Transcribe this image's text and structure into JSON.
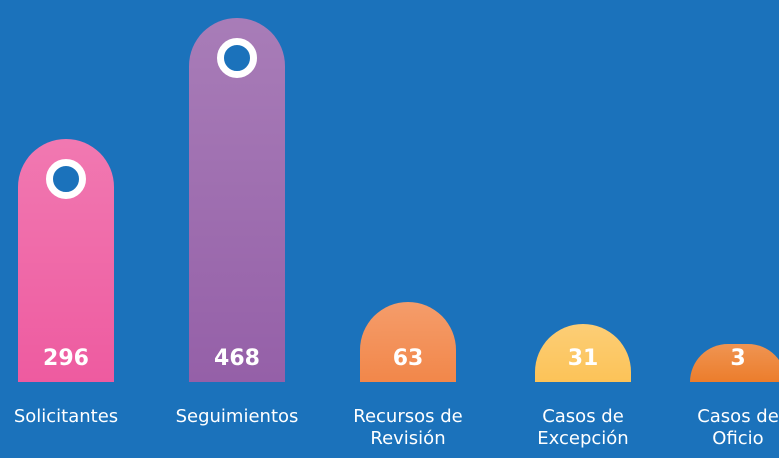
{
  "chart_data": {
    "type": "bar",
    "categories": [
      "Solicitantes",
      "Seguimientos",
      "Recursos de Revisión",
      "Casos de Excepción",
      "Casos de Oficio"
    ],
    "values": [
      296,
      468,
      63,
      31,
      3
    ],
    "colors": [
      "#ee5ba0",
      "#9560a8",
      "#f2874a",
      "#fcc358",
      "#ec7d2c"
    ],
    "background": "#1b72bb"
  }
}
